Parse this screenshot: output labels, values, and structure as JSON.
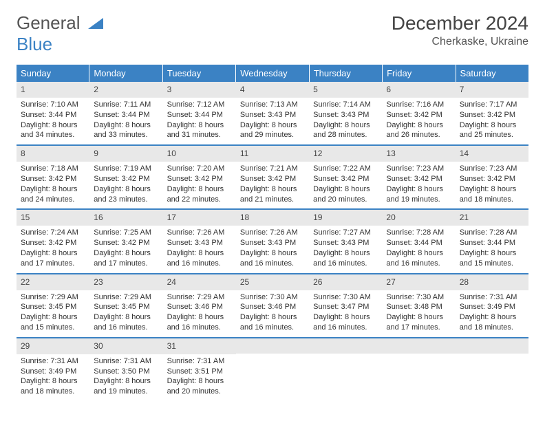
{
  "brand": {
    "text_a": "General",
    "text_b": "Blue"
  },
  "title": "December 2024",
  "location": "Cherkaske, Ukraine",
  "colors": {
    "header_bg": "#3b82c4",
    "header_text": "#ffffff",
    "daynum_bg": "#e8e8e8",
    "row_border": "#3b82c4",
    "body_text": "#333333"
  },
  "weekdays": [
    "Sunday",
    "Monday",
    "Tuesday",
    "Wednesday",
    "Thursday",
    "Friday",
    "Saturday"
  ],
  "weeks": [
    [
      {
        "num": "1",
        "sunrise": "Sunrise: 7:10 AM",
        "sunset": "Sunset: 3:44 PM",
        "day1": "Daylight: 8 hours",
        "day2": "and 34 minutes."
      },
      {
        "num": "2",
        "sunrise": "Sunrise: 7:11 AM",
        "sunset": "Sunset: 3:44 PM",
        "day1": "Daylight: 8 hours",
        "day2": "and 33 minutes."
      },
      {
        "num": "3",
        "sunrise": "Sunrise: 7:12 AM",
        "sunset": "Sunset: 3:44 PM",
        "day1": "Daylight: 8 hours",
        "day2": "and 31 minutes."
      },
      {
        "num": "4",
        "sunrise": "Sunrise: 7:13 AM",
        "sunset": "Sunset: 3:43 PM",
        "day1": "Daylight: 8 hours",
        "day2": "and 29 minutes."
      },
      {
        "num": "5",
        "sunrise": "Sunrise: 7:14 AM",
        "sunset": "Sunset: 3:43 PM",
        "day1": "Daylight: 8 hours",
        "day2": "and 28 minutes."
      },
      {
        "num": "6",
        "sunrise": "Sunrise: 7:16 AM",
        "sunset": "Sunset: 3:42 PM",
        "day1": "Daylight: 8 hours",
        "day2": "and 26 minutes."
      },
      {
        "num": "7",
        "sunrise": "Sunrise: 7:17 AM",
        "sunset": "Sunset: 3:42 PM",
        "day1": "Daylight: 8 hours",
        "day2": "and 25 minutes."
      }
    ],
    [
      {
        "num": "8",
        "sunrise": "Sunrise: 7:18 AM",
        "sunset": "Sunset: 3:42 PM",
        "day1": "Daylight: 8 hours",
        "day2": "and 24 minutes."
      },
      {
        "num": "9",
        "sunrise": "Sunrise: 7:19 AM",
        "sunset": "Sunset: 3:42 PM",
        "day1": "Daylight: 8 hours",
        "day2": "and 23 minutes."
      },
      {
        "num": "10",
        "sunrise": "Sunrise: 7:20 AM",
        "sunset": "Sunset: 3:42 PM",
        "day1": "Daylight: 8 hours",
        "day2": "and 22 minutes."
      },
      {
        "num": "11",
        "sunrise": "Sunrise: 7:21 AM",
        "sunset": "Sunset: 3:42 PM",
        "day1": "Daylight: 8 hours",
        "day2": "and 21 minutes."
      },
      {
        "num": "12",
        "sunrise": "Sunrise: 7:22 AM",
        "sunset": "Sunset: 3:42 PM",
        "day1": "Daylight: 8 hours",
        "day2": "and 20 minutes."
      },
      {
        "num": "13",
        "sunrise": "Sunrise: 7:23 AM",
        "sunset": "Sunset: 3:42 PM",
        "day1": "Daylight: 8 hours",
        "day2": "and 19 minutes."
      },
      {
        "num": "14",
        "sunrise": "Sunrise: 7:23 AM",
        "sunset": "Sunset: 3:42 PM",
        "day1": "Daylight: 8 hours",
        "day2": "and 18 minutes."
      }
    ],
    [
      {
        "num": "15",
        "sunrise": "Sunrise: 7:24 AM",
        "sunset": "Sunset: 3:42 PM",
        "day1": "Daylight: 8 hours",
        "day2": "and 17 minutes."
      },
      {
        "num": "16",
        "sunrise": "Sunrise: 7:25 AM",
        "sunset": "Sunset: 3:42 PM",
        "day1": "Daylight: 8 hours",
        "day2": "and 17 minutes."
      },
      {
        "num": "17",
        "sunrise": "Sunrise: 7:26 AM",
        "sunset": "Sunset: 3:43 PM",
        "day1": "Daylight: 8 hours",
        "day2": "and 16 minutes."
      },
      {
        "num": "18",
        "sunrise": "Sunrise: 7:26 AM",
        "sunset": "Sunset: 3:43 PM",
        "day1": "Daylight: 8 hours",
        "day2": "and 16 minutes."
      },
      {
        "num": "19",
        "sunrise": "Sunrise: 7:27 AM",
        "sunset": "Sunset: 3:43 PM",
        "day1": "Daylight: 8 hours",
        "day2": "and 16 minutes."
      },
      {
        "num": "20",
        "sunrise": "Sunrise: 7:28 AM",
        "sunset": "Sunset: 3:44 PM",
        "day1": "Daylight: 8 hours",
        "day2": "and 16 minutes."
      },
      {
        "num": "21",
        "sunrise": "Sunrise: 7:28 AM",
        "sunset": "Sunset: 3:44 PM",
        "day1": "Daylight: 8 hours",
        "day2": "and 15 minutes."
      }
    ],
    [
      {
        "num": "22",
        "sunrise": "Sunrise: 7:29 AM",
        "sunset": "Sunset: 3:45 PM",
        "day1": "Daylight: 8 hours",
        "day2": "and 15 minutes."
      },
      {
        "num": "23",
        "sunrise": "Sunrise: 7:29 AM",
        "sunset": "Sunset: 3:45 PM",
        "day1": "Daylight: 8 hours",
        "day2": "and 16 minutes."
      },
      {
        "num": "24",
        "sunrise": "Sunrise: 7:29 AM",
        "sunset": "Sunset: 3:46 PM",
        "day1": "Daylight: 8 hours",
        "day2": "and 16 minutes."
      },
      {
        "num": "25",
        "sunrise": "Sunrise: 7:30 AM",
        "sunset": "Sunset: 3:46 PM",
        "day1": "Daylight: 8 hours",
        "day2": "and 16 minutes."
      },
      {
        "num": "26",
        "sunrise": "Sunrise: 7:30 AM",
        "sunset": "Sunset: 3:47 PM",
        "day1": "Daylight: 8 hours",
        "day2": "and 16 minutes."
      },
      {
        "num": "27",
        "sunrise": "Sunrise: 7:30 AM",
        "sunset": "Sunset: 3:48 PM",
        "day1": "Daylight: 8 hours",
        "day2": "and 17 minutes."
      },
      {
        "num": "28",
        "sunrise": "Sunrise: 7:31 AM",
        "sunset": "Sunset: 3:49 PM",
        "day1": "Daylight: 8 hours",
        "day2": "and 18 minutes."
      }
    ],
    [
      {
        "num": "29",
        "sunrise": "Sunrise: 7:31 AM",
        "sunset": "Sunset: 3:49 PM",
        "day1": "Daylight: 8 hours",
        "day2": "and 18 minutes."
      },
      {
        "num": "30",
        "sunrise": "Sunrise: 7:31 AM",
        "sunset": "Sunset: 3:50 PM",
        "day1": "Daylight: 8 hours",
        "day2": "and 19 minutes."
      },
      {
        "num": "31",
        "sunrise": "Sunrise: 7:31 AM",
        "sunset": "Sunset: 3:51 PM",
        "day1": "Daylight: 8 hours",
        "day2": "and 20 minutes."
      },
      {
        "empty": true
      },
      {
        "empty": true
      },
      {
        "empty": true
      },
      {
        "empty": true
      }
    ]
  ]
}
